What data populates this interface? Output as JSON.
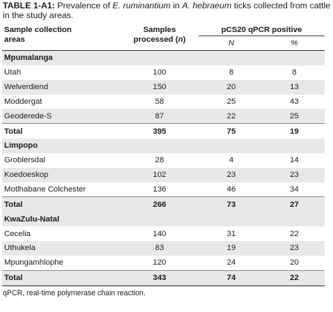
{
  "caption": {
    "label": "TABLE 1-A1:",
    "part1": " Prevalence of ",
    "species1": "E. ruminantium",
    "part2": " in ",
    "species2": "A. hebraeum",
    "part3": " ticks collected from cattle in the study areas."
  },
  "header": {
    "col1_line1": "Sample collection",
    "col1_line2": "areas",
    "col2_line1": "Samples",
    "col2_line2": "processed (n)",
    "group": "pCS20 qPCR positive",
    "sub_n": "N",
    "sub_pct": "%"
  },
  "sections": [
    {
      "name": "Mpumalanga",
      "rows": [
        {
          "area": "Utah",
          "samples": "100",
          "n": "8",
          "pct": "8"
        },
        {
          "area": "Welverdiend",
          "samples": "150",
          "n": "20",
          "pct": "13"
        },
        {
          "area": "Moddergat",
          "samples": "58",
          "n": "25",
          "pct": "43"
        },
        {
          "area": "Geoderede-S",
          "samples": "87",
          "n": "22",
          "pct": "25"
        }
      ],
      "total": {
        "label": "Total",
        "samples": "395",
        "n": "75",
        "pct": "19"
      }
    },
    {
      "name": "Limpopo",
      "rows": [
        {
          "area": "Groblersdal",
          "samples": "28",
          "n": "4",
          "pct": "14"
        },
        {
          "area": "Koedoeskop",
          "samples": "102",
          "n": "23",
          "pct": "23"
        },
        {
          "area": "Motlhabane Colchester",
          "samples": "136",
          "n": "46",
          "pct": "34"
        }
      ],
      "total": {
        "label": "Total",
        "samples": "266",
        "n": "73",
        "pct": "27"
      }
    },
    {
      "name": "KwaZulu-Natal",
      "rows": [
        {
          "area": "Cecelia",
          "samples": "140",
          "n": "31",
          "pct": "22"
        },
        {
          "area": "Uthukela",
          "samples": "83",
          "n": "19",
          "pct": "23"
        },
        {
          "area": "Mpungamhlophe",
          "samples": "120",
          "n": "24",
          "pct": "20"
        }
      ],
      "total": {
        "label": "Total",
        "samples": "343",
        "n": "74",
        "pct": "22"
      }
    }
  ],
  "footnote": "qPCR, real-time polymerase chain reaction."
}
